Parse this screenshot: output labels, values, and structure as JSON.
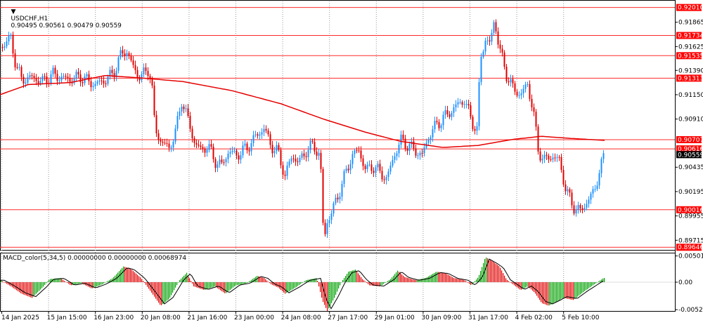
{
  "header": {
    "symbol": "USDCHF,H1",
    "ohlc": "0.90495 0.90561 0.90479 0.90559",
    "caret": "▼"
  },
  "macd_header": "MACD_color(5,34,5) 0.00000000 0.00000000 0.00068974",
  "colors": {
    "bull": "#1e90ff",
    "bear": "#e00000",
    "ma": "#e60000",
    "hline": "#ff2a2a",
    "hline_label_bg": "#ff0000",
    "current_bg": "#000000",
    "grid": "#9a9a9a",
    "hist_up": "#00a000",
    "hist_down": "#e00000",
    "signal": "#000000"
  },
  "chart_data": [
    {
      "type": "candlestick",
      "symbol": "USDCHF",
      "timeframe": "H1",
      "ylim": [
        0.8962,
        0.9207
      ],
      "y_ticks": [
        "0.91865",
        "0.91625",
        "0.91390",
        "0.91150",
        "0.90910",
        "0.90435",
        "0.90195",
        "0.89955",
        "0.89715"
      ],
      "x_ticks": [
        "14 Jan 2025",
        "15 Jan 15:00",
        "16 Jan 23:00",
        "20 Jan 08:00",
        "21 Jan 16:00",
        "23 Jan 00:00",
        "24 Jan 08:00",
        "27 Jan 17:00",
        "29 Jan 01:00",
        "30 Jan 09:00",
        "31 Jan 17:00",
        "4 Feb 02:00",
        "5 Feb 10:00"
      ],
      "horizontal_levels": [
        "0.92010",
        "0.91734",
        "0.91535",
        "0.91313",
        "0.90707",
        "0.90616",
        "0.90016",
        "0.89646"
      ],
      "current_price": "0.90559",
      "ma_anchors": [
        [
          0,
          0.9115
        ],
        [
          40,
          0.9125
        ],
        [
          100,
          0.9127
        ],
        [
          150,
          0.9134
        ],
        [
          210,
          0.9131
        ],
        [
          260,
          0.9128
        ],
        [
          330,
          0.9119
        ],
        [
          400,
          0.9106
        ],
        [
          460,
          0.9091
        ],
        [
          520,
          0.9078
        ],
        [
          570,
          0.9069
        ],
        [
          600,
          0.9066
        ],
        [
          630,
          0.9063
        ],
        [
          680,
          0.9065
        ],
        [
          730,
          0.9071
        ],
        [
          770,
          0.9074
        ],
        [
          810,
          0.9072
        ],
        [
          860,
          0.907
        ]
      ],
      "price_path": [
        [
          0,
          0.916
        ],
        [
          8,
          0.9168
        ],
        [
          15,
          0.917
        ],
        [
          22,
          0.9145
        ],
        [
          30,
          0.913
        ],
        [
          45,
          0.9132
        ],
        [
          60,
          0.9128
        ],
        [
          75,
          0.9135
        ],
        [
          85,
          0.9132
        ],
        [
          100,
          0.913
        ],
        [
          115,
          0.9133
        ],
        [
          125,
          0.9128
        ],
        [
          135,
          0.9125
        ],
        [
          150,
          0.913
        ],
        [
          160,
          0.9135
        ],
        [
          172,
          0.9155
        ],
        [
          180,
          0.9158
        ],
        [
          190,
          0.914
        ],
        [
          200,
          0.9132
        ],
        [
          210,
          0.914
        ],
        [
          215,
          0.913
        ],
        [
          220,
          0.908
        ],
        [
          230,
          0.9068
        ],
        [
          240,
          0.9062
        ],
        [
          250,
          0.908
        ],
        [
          258,
          0.911
        ],
        [
          265,
          0.9095
        ],
        [
          275,
          0.907
        ],
        [
          285,
          0.906
        ],
        [
          295,
          0.9065
        ],
        [
          305,
          0.905
        ],
        [
          315,
          0.9045
        ],
        [
          325,
          0.906
        ],
        [
          335,
          0.9055
        ],
        [
          350,
          0.9062
        ],
        [
          365,
          0.9075
        ],
        [
          375,
          0.9082
        ],
        [
          385,
          0.9065
        ],
        [
          395,
          0.9058
        ],
        [
          405,
          0.9035
        ],
        [
          415,
          0.9055
        ],
        [
          425,
          0.9048
        ],
        [
          435,
          0.906
        ],
        [
          445,
          0.9065
        ],
        [
          455,
          0.9055
        ],
        [
          460,
          0.897
        ],
        [
          465,
          0.899
        ],
        [
          472,
          0.9
        ],
        [
          480,
          0.9015
        ],
        [
          490,
          0.9035
        ],
        [
          500,
          0.9055
        ],
        [
          510,
          0.906
        ],
        [
          520,
          0.904
        ],
        [
          530,
          0.9045
        ],
        [
          540,
          0.9038
        ],
        [
          550,
          0.9032
        ],
        [
          560,
          0.9055
        ],
        [
          570,
          0.907
        ],
        [
          580,
          0.9065
        ],
        [
          590,
          0.906
        ],
        [
          600,
          0.9055
        ],
        [
          610,
          0.9075
        ],
        [
          620,
          0.9085
        ],
        [
          630,
          0.9092
        ],
        [
          640,
          0.9098
        ],
        [
          650,
          0.9105
        ],
        [
          660,
          0.911
        ],
        [
          670,
          0.909
        ],
        [
          678,
          0.908
        ],
        [
          683,
          0.915
        ],
        [
          690,
          0.917
        ],
        [
          697,
          0.9165
        ],
        [
          703,
          0.919
        ],
        [
          710,
          0.916
        ],
        [
          720,
          0.9135
        ],
        [
          730,
          0.912
        ],
        [
          740,
          0.9115
        ],
        [
          750,
          0.9125
        ],
        [
          758,
          0.91
        ],
        [
          765,
          0.906
        ],
        [
          775,
          0.905
        ],
        [
          785,
          0.9055
        ],
        [
          795,
          0.905
        ],
        [
          805,
          0.902
        ],
        [
          815,
          0.9005
        ],
        [
          825,
          0.9
        ],
        [
          835,
          0.901
        ],
        [
          845,
          0.902
        ],
        [
          852,
          0.904
        ],
        [
          860,
          0.9056
        ]
      ]
    },
    {
      "type": "bar",
      "indicator": "MACD_color(5,34,5)",
      "ylim": [
        -0.0055,
        0.0055
      ],
      "y_ticks": [
        "0.00501236",
        "0.00",
        "-0.00524989"
      ],
      "hist_anchors": [
        [
          0,
          0.0004
        ],
        [
          15,
          -0.0008
        ],
        [
          30,
          -0.0022
        ],
        [
          45,
          -0.003
        ],
        [
          60,
          -0.001
        ],
        [
          70,
          0.0006
        ],
        [
          85,
          0.0008
        ],
        [
          100,
          -0.0006
        ],
        [
          115,
          -0.0002
        ],
        [
          130,
          -0.0012
        ],
        [
          145,
          -0.0004
        ],
        [
          160,
          0.0008
        ],
        [
          175,
          0.003
        ],
        [
          185,
          0.0026
        ],
        [
          200,
          0.0008
        ],
        [
          215,
          -0.002
        ],
        [
          228,
          -0.0045
        ],
        [
          240,
          -0.0032
        ],
        [
          255,
          0.0004
        ],
        [
          265,
          0.0018
        ],
        [
          275,
          -0.0008
        ],
        [
          290,
          -0.0015
        ],
        [
          305,
          -0.0008
        ],
        [
          320,
          -0.0022
        ],
        [
          335,
          -0.0006
        ],
        [
          350,
          -0.0002
        ],
        [
          365,
          0.0012
        ],
        [
          375,
          0.0008
        ],
        [
          385,
          -0.0004
        ],
        [
          395,
          -0.001
        ],
        [
          405,
          -0.0022
        ],
        [
          420,
          -0.001
        ],
        [
          435,
          0.0004
        ],
        [
          450,
          0.0008
        ],
        [
          458,
          -0.0035
        ],
        [
          465,
          -0.0055
        ],
        [
          475,
          -0.003
        ],
        [
          485,
          0.0
        ],
        [
          495,
          0.002
        ],
        [
          505,
          0.0024
        ],
        [
          515,
          0.0006
        ],
        [
          525,
          -0.0006
        ],
        [
          540,
          -0.0008
        ],
        [
          555,
          0.0006
        ],
        [
          565,
          0.0022
        ],
        [
          575,
          0.001
        ],
        [
          590,
          0.0004
        ],
        [
          605,
          0.0008
        ],
        [
          620,
          0.002
        ],
        [
          632,
          0.0018
        ],
        [
          645,
          0.0008
        ],
        [
          660,
          0.0004
        ],
        [
          670,
          -0.0006
        ],
        [
          680,
          0.001
        ],
        [
          690,
          0.0048
        ],
        [
          700,
          0.004
        ],
        [
          710,
          0.003
        ],
        [
          720,
          0.0005
        ],
        [
          730,
          -0.0005
        ],
        [
          740,
          -0.0015
        ],
        [
          750,
          -0.0008
        ],
        [
          760,
          -0.002
        ],
        [
          770,
          -0.004
        ],
        [
          780,
          -0.0045
        ],
        [
          790,
          -0.0038
        ],
        [
          800,
          -0.003
        ],
        [
          815,
          -0.0034
        ],
        [
          830,
          -0.0018
        ],
        [
          845,
          -0.0004
        ],
        [
          858,
          0.0008
        ]
      ]
    }
  ]
}
